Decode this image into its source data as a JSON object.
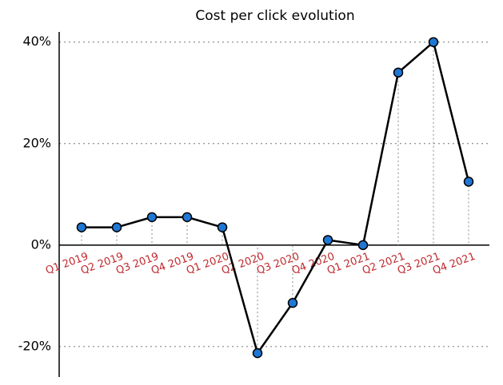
{
  "chart_data": {
    "type": "line",
    "title": "Cost per click evolution",
    "categories": [
      "Q1 2019",
      "Q2 2019",
      "Q3 2019",
      "Q4 2019",
      "Q1 2020",
      "Q2 2020",
      "Q3 2020",
      "Q4 2020",
      "Q1 2021",
      "Q2 2021",
      "Q3 2021",
      "Q4 2021"
    ],
    "values": [
      3.5,
      3.5,
      5.5,
      5.5,
      3.5,
      -21.3,
      -11.4,
      1,
      0,
      34,
      40,
      12.5
    ],
    "color": "#1f77d4",
    "label_color": "#c0282d",
    "ylim": [
      -26,
      42
    ],
    "yticks": [
      {
        "value": -20,
        "label": "-20%"
      },
      {
        "value": 0,
        "label": "0%"
      },
      {
        "value": 20,
        "label": "20%"
      },
      {
        "value": 40,
        "label": "40%"
      }
    ],
    "grid": true
  }
}
